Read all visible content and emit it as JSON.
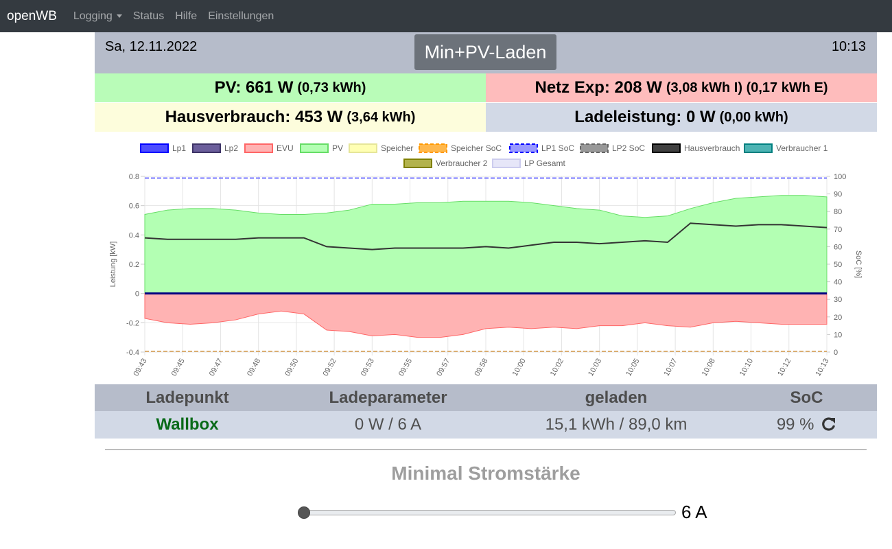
{
  "navbar": {
    "brand": "openWB",
    "items": [
      {
        "label": "Logging",
        "dropdown": true
      },
      {
        "label": "Status"
      },
      {
        "label": "Hilfe"
      },
      {
        "label": "Einstellungen"
      }
    ]
  },
  "header": {
    "date": "Sa, 12.11.2022",
    "mode": "Min+PV-Laden",
    "time": "10:13"
  },
  "stats": {
    "pv": {
      "label": "PV: 661 W",
      "detail": "(0,73 kWh)"
    },
    "netz": {
      "label": "Netz Exp: 208 W",
      "detail": "(3,08 kWh I) (0,17 kWh E)"
    },
    "haus": {
      "label": "Hausverbrauch: 453 W",
      "detail": "(3,64 kWh)"
    },
    "lade": {
      "label": "Ladeleistung: 0 W",
      "detail": "(0,00 kWh)"
    }
  },
  "chart_data": {
    "type": "area",
    "ylabel": "Leistung [kW]",
    "y2label": "SoC [%]",
    "ylim": [
      -0.4,
      0.8
    ],
    "yticks": [
      "0.8",
      "0.6",
      "0.4",
      "0.2",
      "0",
      "-0.2",
      "-0.4"
    ],
    "y2lim": [
      0,
      100
    ],
    "y2ticks": [
      "100",
      "90",
      "80",
      "70",
      "60",
      "50",
      "40",
      "30",
      "20",
      "10",
      "0"
    ],
    "xticks": [
      "09:43",
      "09:45",
      "09:47",
      "09:48",
      "09:50",
      "09:52",
      "09:53",
      "09:55",
      "09:57",
      "09:58",
      "10:00",
      "10:02",
      "10:03",
      "10:05",
      "10:07",
      "10:08",
      "10:10",
      "10:12",
      "10:13"
    ],
    "grid": true,
    "legend_position": "top",
    "legend": [
      {
        "name": "Lp1",
        "fill": "#4d4dff",
        "border": "#0000ff",
        "dashed": false
      },
      {
        "name": "Lp2",
        "fill": "#6b5e9b",
        "border": "#3d3366",
        "dashed": false
      },
      {
        "name": "EVU",
        "fill": "#ffb3b3",
        "border": "#ff6666",
        "dashed": false
      },
      {
        "name": "PV",
        "fill": "#b3ffb3",
        "border": "#66dd66",
        "dashed": false
      },
      {
        "name": "Speicher",
        "fill": "#ffffb3",
        "border": "#e6e699",
        "dashed": false
      },
      {
        "name": "Speicher SoC",
        "fill": "#ffb84d",
        "border": "#ff9900",
        "dashed": true
      },
      {
        "name": "LP1 SoC",
        "fill": "#9999ff",
        "border": "#0000ff",
        "dashed": true
      },
      {
        "name": "LP2 SoC",
        "fill": "#999999",
        "border": "#666666",
        "dashed": true
      },
      {
        "name": "Hausverbrauch",
        "fill": "#404040",
        "border": "#000000",
        "dashed": false
      },
      {
        "name": "Verbraucher 1",
        "fill": "#4db3b3",
        "border": "#008080",
        "dashed": false
      },
      {
        "name": "Verbraucher 2",
        "fill": "#b3b34d",
        "border": "#808000",
        "dashed": false
      },
      {
        "name": "LP Gesamt",
        "fill": "#e6e6f8",
        "border": "#ccccee",
        "dashed": false
      }
    ],
    "x_minutes": [
      0,
      1,
      2,
      3,
      4,
      5,
      6,
      7,
      8,
      9,
      10,
      11,
      12,
      13,
      14,
      15,
      16,
      17,
      18,
      19,
      20,
      21,
      22,
      23,
      24,
      25,
      26,
      27,
      28,
      29,
      30
    ],
    "series": [
      {
        "name": "PV",
        "values": [
          0.54,
          0.57,
          0.58,
          0.58,
          0.57,
          0.55,
          0.54,
          0.54,
          0.55,
          0.57,
          0.61,
          0.61,
          0.62,
          0.62,
          0.63,
          0.63,
          0.63,
          0.62,
          0.6,
          0.58,
          0.57,
          0.53,
          0.52,
          0.53,
          0.58,
          0.62,
          0.65,
          0.66,
          0.67,
          0.67,
          0.66
        ]
      },
      {
        "name": "Hausverbrauch",
        "values": [
          0.38,
          0.37,
          0.37,
          0.37,
          0.37,
          0.38,
          0.38,
          0.38,
          0.32,
          0.31,
          0.3,
          0.31,
          0.31,
          0.31,
          0.31,
          0.32,
          0.31,
          0.33,
          0.35,
          0.35,
          0.34,
          0.35,
          0.36,
          0.35,
          0.48,
          0.47,
          0.46,
          0.47,
          0.47,
          0.46,
          0.45
        ]
      },
      {
        "name": "EVU",
        "values": [
          -0.17,
          -0.2,
          -0.21,
          -0.2,
          -0.18,
          -0.14,
          -0.12,
          -0.14,
          -0.25,
          -0.26,
          -0.29,
          -0.28,
          -0.3,
          -0.3,
          -0.28,
          -0.24,
          -0.23,
          -0.24,
          -0.23,
          -0.24,
          -0.22,
          -0.22,
          -0.2,
          -0.22,
          -0.23,
          -0.2,
          -0.19,
          -0.2,
          -0.21,
          -0.21,
          -0.21
        ]
      },
      {
        "name": "Lp1",
        "values": [
          0,
          0,
          0,
          0,
          0,
          0,
          0,
          0,
          0,
          0,
          0,
          0,
          0,
          0,
          0,
          0,
          0,
          0,
          0,
          0,
          0,
          0,
          0,
          0,
          0,
          0,
          0,
          0,
          0,
          0,
          0
        ]
      },
      {
        "name": "LP1 SoC",
        "values": [
          99,
          99,
          99,
          99,
          99,
          99,
          99,
          99,
          99,
          99,
          99,
          99,
          99,
          99,
          99,
          99,
          99,
          99,
          99,
          99,
          99,
          99,
          99,
          99,
          99,
          99,
          99,
          99,
          99,
          99,
          99
        ]
      },
      {
        "name": "Speicher SoC",
        "values": [
          0,
          0,
          0,
          0,
          0,
          0,
          0,
          0,
          0,
          0,
          0,
          0,
          0,
          0,
          0,
          0,
          0,
          0,
          0,
          0,
          0,
          0,
          0,
          0,
          0,
          0,
          0,
          0,
          0,
          0,
          0
        ]
      }
    ]
  },
  "ladepunkt_table": {
    "headers": [
      "Ladepunkt",
      "Ladeparameter",
      "geladen",
      "SoC"
    ],
    "row": {
      "name": "Wallbox",
      "param": "0 W / 6 A",
      "geladen": "15,1 kWh / 89,0 km",
      "soc": "99 %"
    }
  },
  "min_current": {
    "title": "Minimal Stromstärke",
    "value": "6 A",
    "level_fraction": 0.0
  }
}
